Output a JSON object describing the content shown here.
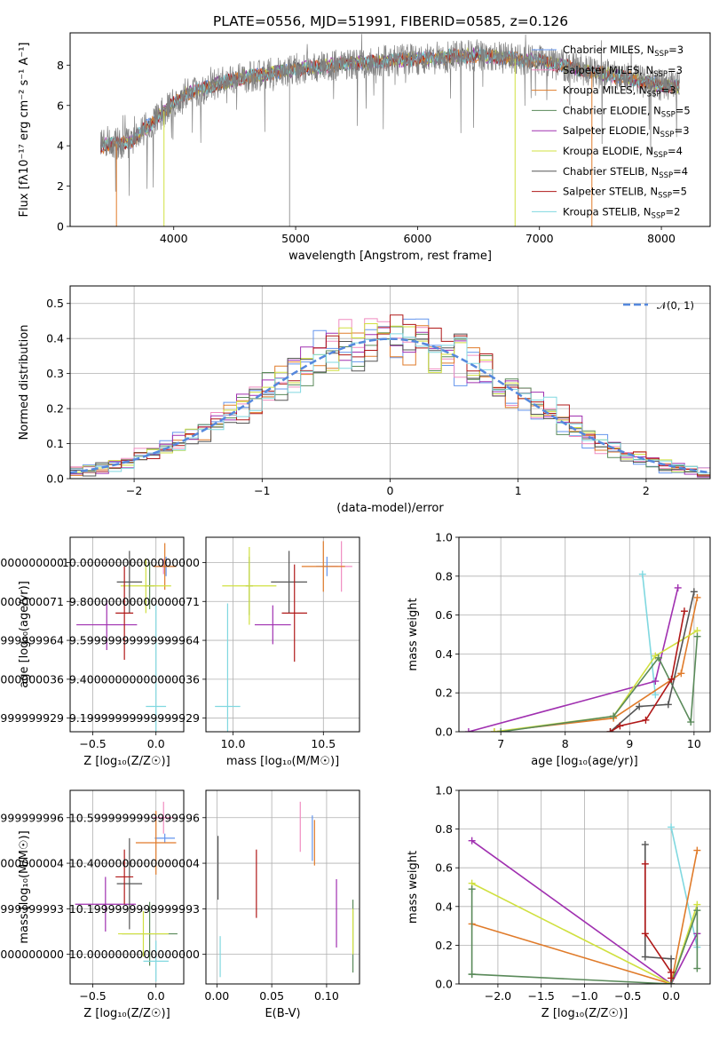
{
  "figure_title": "PLATE=0556, MJD=51991, FIBERID=0585, z=0.126",
  "colors": {
    "chabrier_miles": "#6495ed",
    "salpeter_miles": "#f08cc0",
    "kroupa_miles": "#e07b2a",
    "chabrier_elodie": "#5a8a5a",
    "salpeter_elodie": "#a030b0",
    "kroupa_elodie": "#d0e040",
    "chabrier_stelib": "#555555",
    "salpeter_stelib": "#b01818",
    "kroupa_stelib": "#80d8e0",
    "normal": "#5588dd"
  },
  "chart_data": [
    {
      "id": "spectrum",
      "type": "line",
      "xlabel": "wavelength [Angstrom, rest frame]",
      "ylabel": "Flux [fλ10⁻¹⁷ erg cm⁻² s⁻¹ A⁻¹]",
      "xlim": [
        3150,
        8400
      ],
      "ylim": [
        0,
        9.6
      ],
      "xticks": [
        4000,
        5000,
        6000,
        7000,
        8000
      ],
      "yticks": [
        0,
        2,
        4,
        6,
        8
      ],
      "grid": false,
      "legend_position": "upper-right",
      "data_x_range": [
        3400,
        8150
      ],
      "series": [
        {
          "name": "Chabrier MILES, N",
          "sub": "SSP",
          "suffix": "=3",
          "color_key": "chabrier_miles"
        },
        {
          "name": "Salpeter MILES, N",
          "sub": "SSP",
          "suffix": "=3",
          "color_key": "salpeter_miles"
        },
        {
          "name": "Kroupa MILES, N",
          "sub": "SSP",
          "suffix": "=3",
          "color_key": "kroupa_miles"
        },
        {
          "name": "Chabrier ELODIE, N",
          "sub": "SSP",
          "suffix": "=5",
          "color_key": "chabrier_elodie"
        },
        {
          "name": "Salpeter ELODIE, N",
          "sub": "SSP",
          "suffix": "=3",
          "color_key": "salpeter_elodie"
        },
        {
          "name": "Kroupa ELODIE, N",
          "sub": "SSP",
          "suffix": "=4",
          "color_key": "kroupa_elodie"
        },
        {
          "name": "Chabrier STELIB, N",
          "sub": "SSP",
          "suffix": "=4",
          "color_key": "chabrier_stelib"
        },
        {
          "name": "Salpeter STELIB, N",
          "sub": "SSP",
          "suffix": "=5",
          "color_key": "salpeter_stelib"
        },
        {
          "name": "Kroupa STELIB, N",
          "sub": "SSP",
          "suffix": "=2",
          "color_key": "kroupa_stelib"
        }
      ],
      "continuum_knots": [
        [
          3400,
          4.0
        ],
        [
          3650,
          4.2
        ],
        [
          3900,
          5.6
        ],
        [
          4100,
          6.6
        ],
        [
          4500,
          7.3
        ],
        [
          5000,
          7.8
        ],
        [
          5500,
          8.1
        ],
        [
          6000,
          8.3
        ],
        [
          6500,
          8.5
        ],
        [
          7000,
          8.2
        ],
        [
          7500,
          7.6
        ],
        [
          8000,
          7.0
        ],
        [
          8150,
          6.9
        ]
      ],
      "drops": [
        {
          "x": 3530,
          "color_key": "kroupa_miles"
        },
        {
          "x": 3920,
          "color_key": "kroupa_elodie"
        },
        {
          "x": 6800,
          "color_key": "kroupa_elodie"
        },
        {
          "x": 7430,
          "color_key": "kroupa_miles"
        }
      ]
    },
    {
      "id": "residuals",
      "type": "step",
      "xlabel": "(data-model)/error",
      "ylabel": "Normed distribution",
      "xlim": [
        -2.5,
        2.5
      ],
      "ylim": [
        0,
        0.55
      ],
      "xticks": [
        -2,
        -1,
        0,
        1,
        2
      ],
      "yticks": [
        0.0,
        0.1,
        0.2,
        0.3,
        0.4,
        0.5
      ],
      "grid": true,
      "bin_width": 0.1,
      "legend_position": "upper-right",
      "legend_label": "𝒩(0, 1)",
      "series_color_keys": [
        "chabrier_miles",
        "salpeter_miles",
        "kroupa_miles",
        "chabrier_elodie",
        "salpeter_elodie",
        "kroupa_elodie",
        "chabrier_stelib",
        "salpeter_stelib",
        "kroupa_stelib"
      ]
    },
    {
      "id": "z_age",
      "type": "errorbar",
      "xlabel": "Z [log₁₀(Z/Z☉)]",
      "ylabel": "age  [log₁₀(age/yr)]",
      "xlim": [
        -0.68,
        0.22
      ],
      "ylim": [
        9.13,
        10.13
      ],
      "xticks": [
        -0.5,
        0.0
      ],
      "yticks": [
        9.2,
        9.4,
        9.6,
        9.8,
        10.0
      ],
      "grid": true,
      "points": [
        {
          "color_key": "chabrier_miles",
          "x": 0.08,
          "y": 9.98,
          "xerr": 0.08,
          "yerr": 0.05
        },
        {
          "color_key": "salpeter_miles",
          "x": 0.06,
          "y": 9.98,
          "xerr": 0.05,
          "yerr": 0.04
        },
        {
          "color_key": "kroupa_miles",
          "x": 0.07,
          "y": 9.98,
          "xerr": 0.09,
          "yerr": 0.12
        },
        {
          "color_key": "chabrier_elodie",
          "x": -0.05,
          "y": 9.88,
          "xerr": 0.04,
          "yerr": 0.12
        },
        {
          "color_key": "salpeter_elodie",
          "x": -0.39,
          "y": 9.68,
          "xerr": 0.24,
          "yerr": 0.13
        },
        {
          "color_key": "kroupa_elodie",
          "x": -0.08,
          "y": 9.88,
          "xerr": 0.2,
          "yerr": 0.14
        },
        {
          "color_key": "chabrier_stelib",
          "x": -0.21,
          "y": 9.9,
          "xerr": 0.1,
          "yerr": 0.16
        },
        {
          "color_key": "salpeter_stelib",
          "x": -0.25,
          "y": 9.74,
          "xerr": 0.07,
          "yerr": 0.24
        },
        {
          "color_key": "kroupa_stelib",
          "x": 0.0,
          "y": 9.26,
          "xerr": 0.08,
          "yerr": 0.52
        }
      ]
    },
    {
      "id": "mass_age",
      "type": "errorbar",
      "xlabel": "mass [log₁₀(M/M☉)]",
      "ylabel": "",
      "xlim": [
        9.85,
        10.7
      ],
      "ylim": [
        9.13,
        10.13
      ],
      "xticks": [
        10.0,
        10.5
      ],
      "yticks": [
        9.2,
        9.4,
        9.6,
        9.8,
        10.0
      ],
      "grid": true,
      "points": [
        {
          "color_key": "chabrier_miles",
          "x": 10.52,
          "y": 9.98,
          "xerr": 0.06,
          "yerr": 0.05
        },
        {
          "color_key": "salpeter_miles",
          "x": 10.6,
          "y": 9.98,
          "xerr": 0.06,
          "yerr": 0.13
        },
        {
          "color_key": "kroupa_miles",
          "x": 10.5,
          "y": 9.98,
          "xerr": 0.12,
          "yerr": 0.13
        },
        {
          "color_key": "chabrier_elodie",
          "x": 10.09,
          "y": 9.88,
          "xerr": 0.02,
          "yerr": 0.15
        },
        {
          "color_key": "salpeter_elodie",
          "x": 10.22,
          "y": 9.68,
          "xerr": 0.1,
          "yerr": 0.1
        },
        {
          "color_key": "kroupa_elodie",
          "x": 10.09,
          "y": 9.88,
          "xerr": 0.15,
          "yerr": 0.2
        },
        {
          "color_key": "chabrier_stelib",
          "x": 10.31,
          "y": 9.9,
          "xerr": 0.1,
          "yerr": 0.16
        },
        {
          "color_key": "salpeter_stelib",
          "x": 10.34,
          "y": 9.74,
          "xerr": 0.07,
          "yerr": 0.25
        },
        {
          "color_key": "kroupa_stelib",
          "x": 9.97,
          "y": 9.26,
          "xerr": 0.07,
          "yerr": 0.53
        }
      ]
    },
    {
      "id": "age_weight",
      "type": "line",
      "xlabel": "age  [log₁₀(age/yr)]",
      "ylabel": "mass weight",
      "xlim": [
        6.35,
        10.25
      ],
      "ylim": [
        0,
        1.0
      ],
      "xticks": [
        7,
        8,
        9,
        10
      ],
      "yticks": [
        0.0,
        0.2,
        0.4,
        0.6,
        0.8,
        1.0
      ],
      "grid": true,
      "series": [
        {
          "color_key": "kroupa_stelib",
          "points": [
            [
              9.2,
              0.81
            ],
            [
              9.4,
              0.19
            ]
          ]
        },
        {
          "color_key": "salpeter_elodie",
          "points": [
            [
              6.5,
              0.0
            ],
            [
              9.4,
              0.26
            ],
            [
              9.75,
              0.74
            ]
          ]
        },
        {
          "color_key": "kroupa_miles",
          "points": [
            [
              6.9,
              0.0
            ],
            [
              8.75,
              0.07
            ],
            [
              9.8,
              0.3
            ],
            [
              10.05,
              0.69
            ]
          ]
        },
        {
          "color_key": "kroupa_elodie",
          "points": [
            [
              6.9,
              0.0
            ],
            [
              8.75,
              0.08
            ],
            [
              9.4,
              0.39
            ],
            [
              10.05,
              0.52
            ]
          ]
        },
        {
          "color_key": "chabrier_elodie",
          "points": [
            [
              7.0,
              0.0
            ],
            [
              8.75,
              0.08
            ],
            [
              9.45,
              0.38
            ],
            [
              9.95,
              0.05
            ],
            [
              10.05,
              0.49
            ]
          ]
        },
        {
          "color_key": "chabrier_stelib",
          "points": [
            [
              8.7,
              0.0
            ],
            [
              9.15,
              0.13
            ],
            [
              9.6,
              0.14
            ],
            [
              10.0,
              0.72
            ]
          ]
        },
        {
          "color_key": "salpeter_stelib",
          "points": [
            [
              8.7,
              0.0
            ],
            [
              8.85,
              0.03
            ],
            [
              9.25,
              0.06
            ],
            [
              9.65,
              0.27
            ],
            [
              9.85,
              0.62
            ]
          ]
        }
      ]
    },
    {
      "id": "z_mass",
      "type": "errorbar",
      "xlabel": "Z [log₁₀(Z/Z☉)]",
      "ylabel": "mass [log₁₀(M/M☉)]",
      "xlim": [
        -0.68,
        0.22
      ],
      "ylim": [
        9.87,
        10.72
      ],
      "xticks": [
        -0.5,
        0.0
      ],
      "yticks": [
        10.0,
        10.2,
        10.4,
        10.6
      ],
      "grid": true,
      "points": [
        {
          "color_key": "chabrier_miles",
          "x": 0.07,
          "y": 10.51,
          "xerr": 0.08,
          "yerr": 0.02
        },
        {
          "color_key": "salpeter_miles",
          "x": 0.06,
          "y": 10.6,
          "xerr": 0.08,
          "yerr": 0.07
        },
        {
          "color_key": "kroupa_miles",
          "x": 0.0,
          "y": 10.49,
          "xerr": 0.16,
          "yerr": 0.14
        },
        {
          "color_key": "chabrier_elodie",
          "x": -0.05,
          "y": 10.09,
          "xerr": 0.22,
          "yerr": 0.14
        },
        {
          "color_key": "salpeter_elodie",
          "x": -0.4,
          "y": 10.22,
          "xerr": 0.24,
          "yerr": 0.12
        },
        {
          "color_key": "kroupa_elodie",
          "x": -0.1,
          "y": 10.09,
          "xerr": 0.2,
          "yerr": 0.1
        },
        {
          "color_key": "chabrier_stelib",
          "x": -0.21,
          "y": 10.31,
          "xerr": 0.1,
          "yerr": 0.2
        },
        {
          "color_key": "salpeter_stelib",
          "x": -0.25,
          "y": 10.34,
          "xerr": 0.07,
          "yerr": 0.12
        },
        {
          "color_key": "kroupa_stelib",
          "x": 0.0,
          "y": 9.97,
          "xerr": 0.1,
          "yerr": 0.09
        }
      ]
    },
    {
      "id": "ebv_mass",
      "type": "errorbar",
      "xlabel": "E(B-V)",
      "ylabel": "",
      "xlim": [
        -0.01,
        0.13
      ],
      "ylim": [
        9.87,
        10.72
      ],
      "xticks": [
        0.0,
        0.05,
        0.1
      ],
      "yticks": [
        10.0,
        10.2,
        10.4,
        10.6
      ],
      "grid": true,
      "points": [
        {
          "color_key": "chabrier_miles",
          "x": 0.087,
          "y": 10.51,
          "xerr": 0.0,
          "yerr": 0.1
        },
        {
          "color_key": "salpeter_miles",
          "x": 0.076,
          "y": 10.56,
          "xerr": 0.0,
          "yerr": 0.11
        },
        {
          "color_key": "kroupa_miles",
          "x": 0.089,
          "y": 10.49,
          "xerr": 0.0,
          "yerr": 0.1
        },
        {
          "color_key": "chabrier_elodie",
          "x": 0.124,
          "y": 10.08,
          "xerr": 0.0,
          "yerr": 0.16
        },
        {
          "color_key": "salpeter_elodie",
          "x": 0.109,
          "y": 10.18,
          "xerr": 0.0,
          "yerr": 0.15
        },
        {
          "color_key": "kroupa_elodie",
          "x": 0.124,
          "y": 10.1,
          "xerr": 0.0,
          "yerr": 0.1
        },
        {
          "color_key": "chabrier_stelib",
          "x": 0.001,
          "y": 10.38,
          "xerr": 0.0,
          "yerr": 0.14
        },
        {
          "color_key": "salpeter_stelib",
          "x": 0.036,
          "y": 10.31,
          "xerr": 0.0,
          "yerr": 0.15
        },
        {
          "color_key": "kroupa_stelib",
          "x": 0.003,
          "y": 9.99,
          "xerr": 0.0,
          "yerr": 0.09
        }
      ]
    },
    {
      "id": "z_weight",
      "type": "line",
      "xlabel": "Z [log₁₀(Z/Z☉)]",
      "ylabel": "mass weight",
      "xlim": [
        -2.45,
        0.45
      ],
      "ylim": [
        0,
        1.0
      ],
      "xticks": [
        -2.0,
        -1.5,
        -1.0,
        -0.5,
        0.0
      ],
      "yticks": [
        0.0,
        0.2,
        0.4,
        0.6,
        0.8,
        1.0
      ],
      "grid": true,
      "series": [
        {
          "color_key": "kroupa_stelib",
          "points": [
            [
              0.0,
              0.81
            ],
            [
              0.3,
              0.19
            ]
          ]
        },
        {
          "color_key": "salpeter_elodie",
          "points": [
            [
              -2.3,
              0.74
            ],
            [
              0.0,
              0.0
            ],
            [
              0.3,
              0.26
            ]
          ]
        },
        {
          "color_key": "kroupa_miles",
          "points": [
            [
              -2.3,
              0.31
            ],
            [
              0.0,
              0.0
            ],
            [
              0.3,
              0.69
            ]
          ]
        },
        {
          "color_key": "kroupa_elodie",
          "points": [
            [
              -2.3,
              0.52
            ],
            [
              0.0,
              0.0
            ],
            [
              0.3,
              0.41
            ]
          ]
        },
        {
          "color_key": "chabrier_elodie",
          "points": [
            [
              -2.3,
              0.05
            ],
            [
              -2.3,
              0.49
            ],
            [
              -2.3,
              0.05
            ],
            [
              0.0,
              0.0
            ],
            [
              0.3,
              0.38
            ],
            [
              0.3,
              0.08
            ]
          ]
        },
        {
          "color_key": "chabrier_stelib",
          "points": [
            [
              -0.3,
              0.72
            ],
            [
              -0.3,
              0.14
            ],
            [
              0.0,
              0.13
            ],
            [
              0.0,
              0.0
            ]
          ]
        },
        {
          "color_key": "salpeter_stelib",
          "points": [
            [
              -0.3,
              0.62
            ],
            [
              -0.3,
              0.26
            ],
            [
              0.0,
              0.06
            ],
            [
              0.0,
              0.03
            ]
          ]
        }
      ]
    }
  ]
}
